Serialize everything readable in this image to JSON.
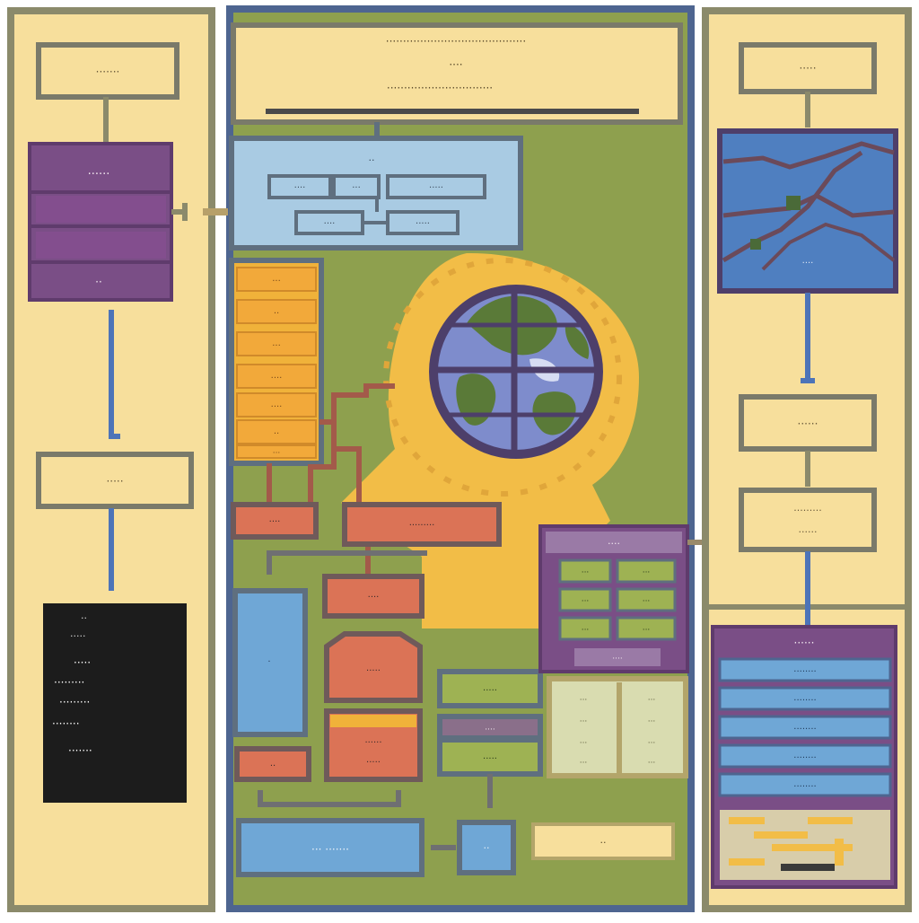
{
  "colors": {
    "cream": "#f7df9c",
    "olive_border": "#8b8a6b",
    "green_bg": "#8ea04e",
    "navy_border": "#4e6590",
    "purple": "#7a4e86",
    "blue_light": "#a9cbe3",
    "blue_mid": "#6fa7d6",
    "salmon": "#db7356",
    "orange": "#f0b23a",
    "maroon": "#a35a4a",
    "gold": "#f2bd47",
    "black": "#1c1c1c"
  },
  "left_panel": {
    "title_box": "·······",
    "purple_block": {
      "header": "······",
      "footer": "··"
    },
    "mid_box": "·····",
    "dark_note": [
      "··",
      "·····",
      "·····",
      "·········",
      "·········",
      "········",
      "·······"
    ]
  },
  "main_panel": {
    "header_lines": [
      "·········································",
      "····",
      "·······························"
    ],
    "top_diagram": {
      "title": "··",
      "row1": [
        "····",
        "···",
        "·····"
      ],
      "row2": [
        "····",
        "·····"
      ]
    },
    "orange_stack": [
      "···",
      "··",
      "···",
      "····",
      "····",
      "··",
      "···"
    ],
    "salmon_boxes": [
      "····",
      "·········",
      "····",
      "·····",
      "······",
      "·····",
      "··"
    ],
    "purple_panel": {
      "title": "····",
      "cells": [
        "···",
        "···",
        "···",
        "···",
        "···",
        "···"
      ],
      "footer": "····"
    },
    "green_boxes": [
      "·····",
      "····",
      "·····"
    ],
    "list_panel": [
      "···",
      "···",
      "···",
      "···",
      "···",
      "···",
      "···",
      "···"
    ],
    "blue_side_box": "·",
    "bottom_blue_box": "··· ·······",
    "small_blue_box": "··",
    "cream_label": "··"
  },
  "right_panel": {
    "title_box": "·····",
    "map_caption": "····",
    "box2": "······",
    "box3": [
      "·········",
      "······"
    ],
    "purple_list": {
      "title": "······",
      "items": [
        "········",
        "········",
        "········",
        "········",
        "········"
      ]
    }
  },
  "icons": {
    "globe": "globe-icon",
    "map": "map-icon"
  }
}
